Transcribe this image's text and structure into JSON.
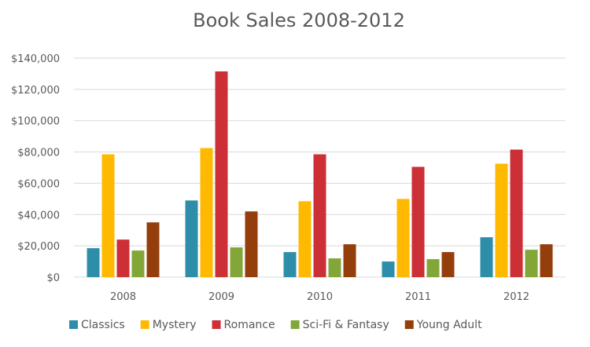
{
  "chart_data": {
    "type": "bar",
    "title": "Book Sales 2008-2012",
    "xlabel": "",
    "ylabel": "",
    "categories": [
      "2008",
      "2009",
      "2010",
      "2011",
      "2012"
    ],
    "y_tick_labels": [
      "$0",
      "$20,000",
      "$40,000",
      "$60,000",
      "$80,000",
      "$100,000",
      "$120,000",
      "$140,000"
    ],
    "y_ticks": [
      0,
      20000,
      40000,
      60000,
      80000,
      100000,
      120000,
      140000
    ],
    "ylim": [
      0,
      140000
    ],
    "grid": true,
    "legend_position": "bottom",
    "series": [
      {
        "name": "Classics",
        "color": "#2e8eaa",
        "values": [
          18500,
          49000,
          16000,
          10000,
          25500
        ]
      },
      {
        "name": "Mystery",
        "color": "#ffb900",
        "values": [
          78500,
          82500,
          48500,
          50000,
          72500
        ]
      },
      {
        "name": "Romance",
        "color": "#cc2f35",
        "values": [
          24000,
          131500,
          78500,
          70500,
          81500
        ]
      },
      {
        "name": "Sci-Fi & Fantasy",
        "color": "#82a638",
        "values": [
          17000,
          19000,
          12000,
          11500,
          17500
        ]
      },
      {
        "name": "Young Adult",
        "color": "#943e0c",
        "values": [
          35000,
          42000,
          21000,
          16000,
          21000
        ]
      }
    ]
  }
}
